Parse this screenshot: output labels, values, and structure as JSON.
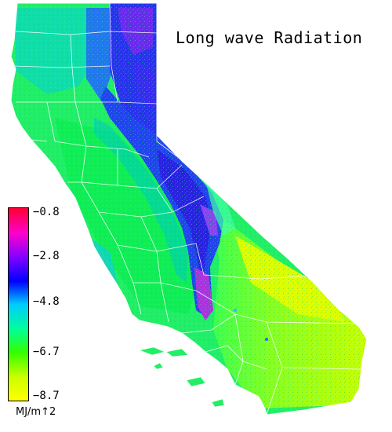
{
  "title": "Long wave Radiation",
  "legend": {
    "unit": "MJ/m↑2",
    "ticks": [
      "−0.8",
      "−2.8",
      "−4.8",
      "−6.7",
      "−8.7"
    ],
    "tick_values": [
      -0.8,
      -2.8,
      -4.8,
      -6.7,
      -8.7
    ],
    "range": [
      -8.7,
      -0.8
    ],
    "colors": [
      "#ff0033",
      "#ff00cc",
      "#8800ff",
      "#0000ff",
      "#00ccff",
      "#00ff99",
      "#33ff00",
      "#ccff00",
      "#ffff00"
    ]
  },
  "map": {
    "region": "California",
    "county_boundaries": true,
    "boundary_color": "#ffffff"
  }
}
